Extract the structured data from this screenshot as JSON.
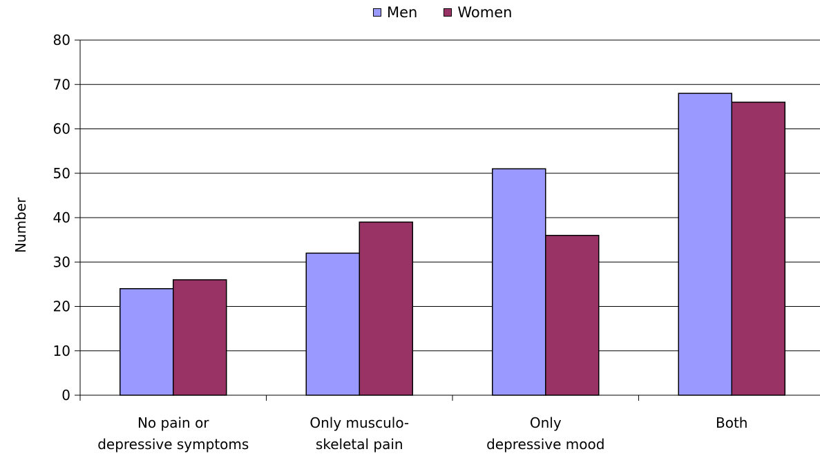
{
  "chart_data": {
    "type": "bar",
    "categories": [
      "No pain or\ndepressive  symptoms",
      "Only musculo-\nskeletal pain",
      "Only\ndepressive mood",
      "Both"
    ],
    "series": [
      {
        "name": "Men",
        "color": "#9999ff",
        "values": [
          24,
          32,
          51,
          68
        ]
      },
      {
        "name": "Women",
        "color": "#993366",
        "values": [
          26,
          39,
          36,
          66
        ]
      }
    ],
    "xlabel": "",
    "ylabel": "Number",
    "ylim": [
      0,
      80
    ],
    "yticks": [
      0,
      10,
      20,
      30,
      40,
      50,
      60,
      70,
      80
    ],
    "grid": true,
    "legend_position": "top"
  }
}
